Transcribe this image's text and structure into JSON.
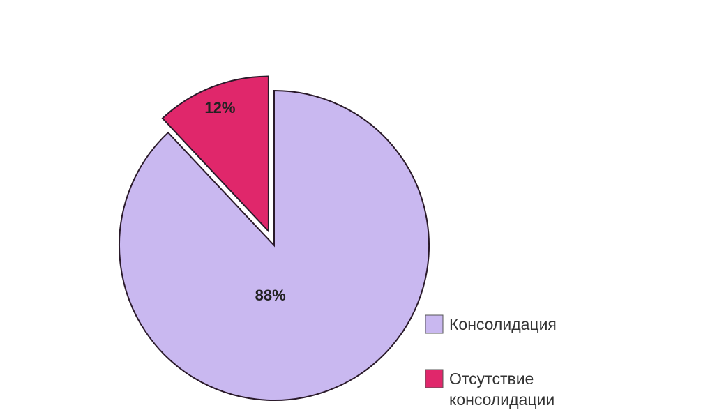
{
  "chart_data": {
    "type": "pie",
    "categories": [
      "Консолидация",
      "Отсутствие консолидации"
    ],
    "values": [
      88,
      12
    ],
    "value_labels": [
      "88%",
      "12%"
    ],
    "colors": [
      "#c9b8f0",
      "#e0276b"
    ],
    "explode": [
      false,
      true
    ]
  }
}
